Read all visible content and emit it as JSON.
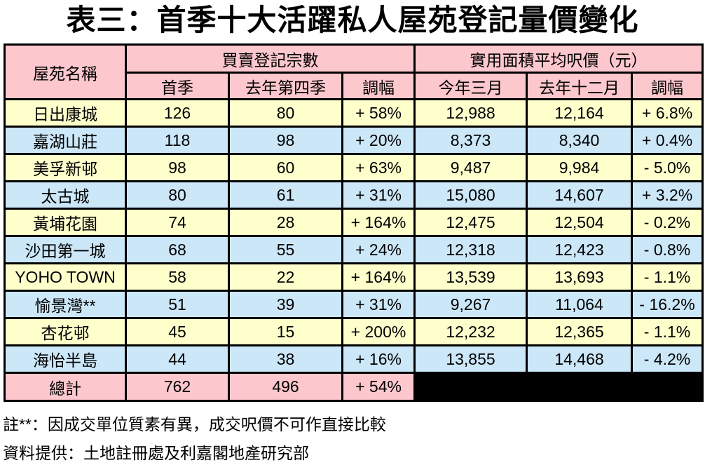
{
  "title": "表三：首季十大活躍私人屋苑登記量價變化",
  "table": {
    "header": {
      "estate_name": "屋苑名稱",
      "group1": "買賣登記宗數",
      "group2": "實用面積平均呎價（元）",
      "sub1": [
        "首季",
        "去年第四季",
        "調幅"
      ],
      "sub2": [
        "今年三月",
        "去年十二月",
        "調幅"
      ]
    },
    "rows": [
      {
        "name": "日出康城",
        "q1": "126",
        "q4": "80",
        "vol_change": "+ 58%",
        "mar": "12,988",
        "dec": "12,164",
        "price_change": "+ 6.8%"
      },
      {
        "name": "嘉湖山莊",
        "q1": "118",
        "q4": "98",
        "vol_change": "+ 20%",
        "mar": "8,373",
        "dec": "8,340",
        "price_change": "+ 0.4%"
      },
      {
        "name": "美孚新邨",
        "q1": "98",
        "q4": "60",
        "vol_change": "+ 63%",
        "mar": "9,487",
        "dec": "9,984",
        "price_change": "- 5.0%"
      },
      {
        "name": "太古城",
        "q1": "80",
        "q4": "61",
        "vol_change": "+ 31%",
        "mar": "15,080",
        "dec": "14,607",
        "price_change": "+ 3.2%"
      },
      {
        "name": "黃埔花園",
        "q1": "74",
        "q4": "28",
        "vol_change": "+ 164%",
        "mar": "12,475",
        "dec": "12,504",
        "price_change": "- 0.2%"
      },
      {
        "name": "沙田第一城",
        "q1": "68",
        "q4": "55",
        "vol_change": "+ 24%",
        "mar": "12,318",
        "dec": "12,423",
        "price_change": "- 0.8%"
      },
      {
        "name": "YOHO TOWN",
        "q1": "58",
        "q4": "22",
        "vol_change": "+ 164%",
        "mar": "13,539",
        "dec": "13,693",
        "price_change": "- 1.1%"
      },
      {
        "name": "愉景灣**",
        "q1": "51",
        "q4": "39",
        "vol_change": "+ 31%",
        "mar": "9,267",
        "dec": "11,064",
        "price_change": "- 16.2%"
      },
      {
        "name": "杏花邨",
        "q1": "45",
        "q4": "15",
        "vol_change": "+ 200%",
        "mar": "12,232",
        "dec": "12,365",
        "price_change": "- 1.1%"
      },
      {
        "name": "海怡半島",
        "q1": "44",
        "q4": "38",
        "vol_change": "+ 16%",
        "mar": "13,855",
        "dec": "14,468",
        "price_change": "- 4.2%"
      }
    ],
    "total": {
      "name": "總計",
      "q1": "762",
      "q4": "496",
      "vol_change": "+ 54%"
    }
  },
  "notes": [
    "註**：因成交單位質素有異，成交呎價不可作直接比較",
    "資料提供：土地註冊處及利嘉閣地產研究部"
  ],
  "colors": {
    "pink": "#fcc7cd",
    "yellow": "#ffffcc",
    "blue": "#cce7f8",
    "black": "#000000"
  }
}
